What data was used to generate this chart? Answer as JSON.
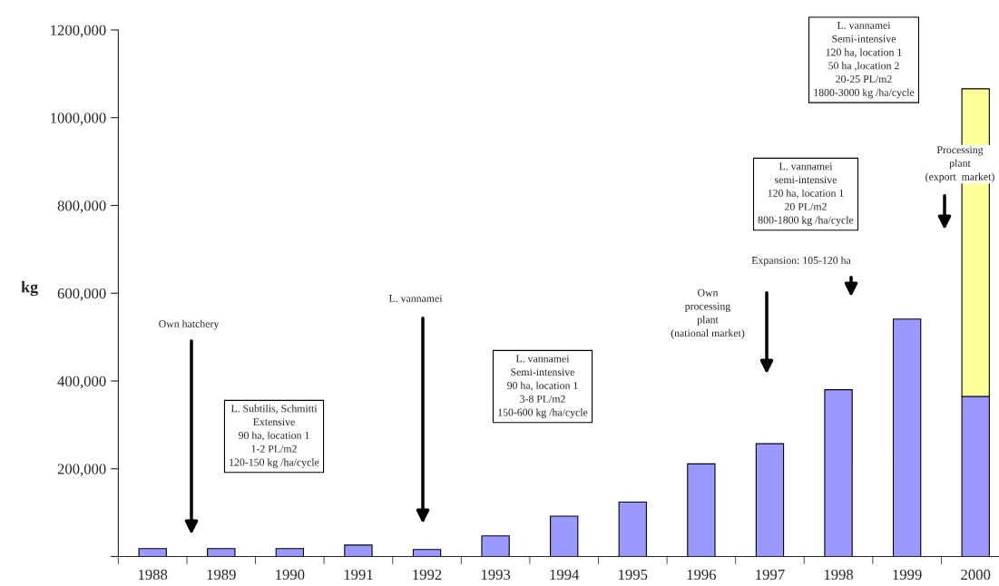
{
  "chart_data": {
    "type": "bar",
    "stacked": true,
    "ylabel": "kg",
    "categories": [
      "1988",
      "1989",
      "1990",
      "1991",
      "1992",
      "1993",
      "1994",
      "1995",
      "1996",
      "1997",
      "1998",
      "1999",
      "2000"
    ],
    "series": [
      {
        "color": "#9999ff",
        "values": [
          18000,
          18000,
          18000,
          26000,
          16000,
          47000,
          92000,
          124000,
          211000,
          257000,
          380000,
          541000,
          365000
        ]
      },
      {
        "color": "#ffff99",
        "values": [
          null,
          null,
          null,
          null,
          null,
          null,
          null,
          null,
          null,
          null,
          null,
          null,
          701000
        ]
      }
    ],
    "ylim": [
      0,
      1200000
    ],
    "yticks": [
      {
        "value": 0,
        "label": null
      },
      {
        "value": 200000,
        "label": "200,000"
      },
      {
        "value": 400000,
        "label": "400,000"
      },
      {
        "value": 600000,
        "label": "600,000"
      },
      {
        "value": 800000,
        "label": "800,000"
      },
      {
        "value": 1000000,
        "label": "1000,000"
      },
      {
        "value": 1200000,
        "label": "1200,000"
      }
    ],
    "grid": false,
    "legend": false,
    "annotations": [
      "Own hatchery",
      "L. Subtilis, Schmitti\nExtensive\n90 ha, location 1\n1-2 PL/m2\n120-150 kg /ha/cycle",
      "L. vannamei",
      "L. vannamei\nSemi-intensive\n90 ha, location 1\n3-8 PL/m2\n150-600 kg /ha/cycle",
      "Own\nprocessing\nplant\n(national market)",
      "Expansion: 105-120 ha",
      "L. vannamei\nsemi-intensive\n120 ha, location 1\n20 PL/m2\n800-1800 kg /ha/cycle",
      "L. vannamei\nSemi-intensive\n120 ha, location 1\n50 ha ,location 2\n20-25 PL/m2\n1800-3000 kg /ha/cycle",
      "Processing\nplant\n(export  market)"
    ]
  }
}
